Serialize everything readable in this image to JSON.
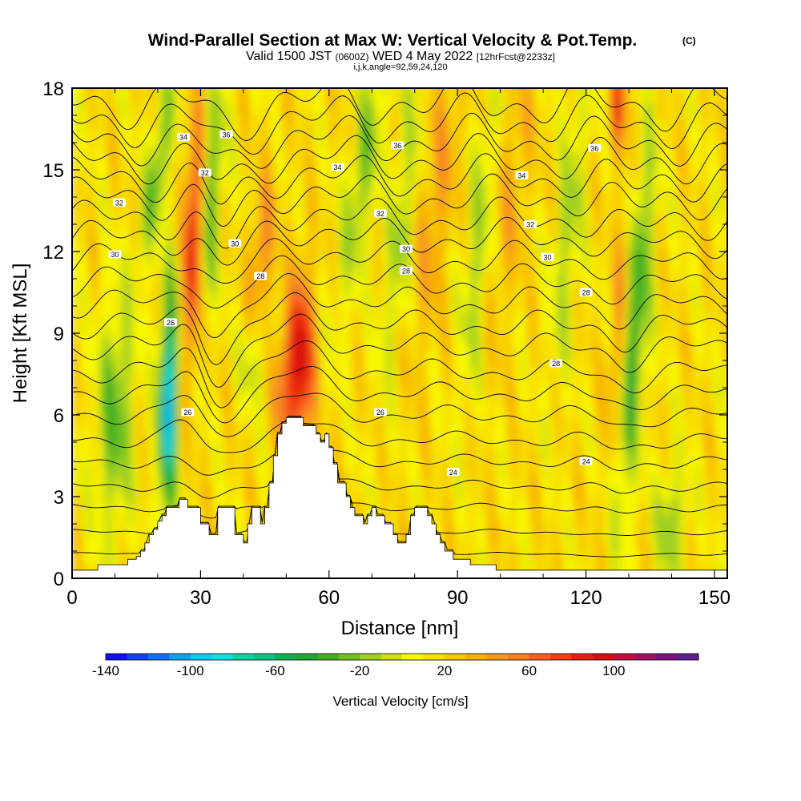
{
  "chart_data": {
    "type": "heatmap",
    "title": "Wind-Parallel Section at Max W: Vertical Velocity & Pot.Temp.",
    "title_mark": "(C)",
    "subtitle": {
      "pre": "Valid 1500 JST",
      "zulu": "(0600Z)",
      "mid": "WED 4 May 2022",
      "fcst": "[12hrFcst@2233z]"
    },
    "params_line": "i,j,k,angle=92,59,24,120",
    "xlabel": "Distance [nm]",
    "ylabel": "Height [Kft MSL]",
    "xlim": [
      0,
      153
    ],
    "ylim": [
      0,
      18
    ],
    "x_ticks": [
      "0",
      "30",
      "60",
      "90",
      "120",
      "150"
    ],
    "y_ticks": [
      "0",
      "3",
      "6",
      "9",
      "12",
      "15",
      "18"
    ],
    "colorbar": {
      "label": "Vertical Velocity [cm/s]",
      "range": [
        -140,
        140
      ],
      "tick_labels": [
        "-140",
        "-100",
        "-60",
        "-20",
        "20",
        "60",
        "100"
      ],
      "colors": [
        "#1010f0",
        "#1040f0",
        "#1070f0",
        "#10a0f0",
        "#10c8f0",
        "#10e0e0",
        "#10d0a0",
        "#10c080",
        "#10b050",
        "#20a830",
        "#40b020",
        "#70c020",
        "#a0d020",
        "#d0e010",
        "#f8f800",
        "#f8e000",
        "#f8c800",
        "#f8b000",
        "#f89820",
        "#f88020",
        "#f86020",
        "#f04010",
        "#e82010",
        "#d81010",
        "#c01040",
        "#a01060",
        "#801080",
        "#602090"
      ]
    },
    "features": [
      {
        "type": "terrain-peak",
        "x": 52,
        "top_kft": 5.9
      },
      {
        "type": "terrain-peak",
        "x": 30,
        "top_kft": 2.6
      },
      {
        "type": "updraft-max",
        "x": 28,
        "kft_range": [
          8,
          16
        ],
        "value": 110
      },
      {
        "type": "updraft-max",
        "x": 53,
        "kft_range": [
          6,
          10
        ],
        "value": 90
      },
      {
        "type": "downdraft-max",
        "x": 23,
        "kft_range": [
          3,
          10
        ],
        "value": -110
      },
      {
        "type": "downdraft-max",
        "x": 131,
        "kft_range": [
          5,
          13
        ],
        "value": -60
      }
    ],
    "isentrope_labels": [
      {
        "text": "34",
        "x": 26,
        "y": 16.2
      },
      {
        "text": "36",
        "x": 36,
        "y": 16.3
      },
      {
        "text": "32",
        "x": 31,
        "y": 14.9
      },
      {
        "text": "32",
        "x": 11,
        "y": 13.8
      },
      {
        "text": "30",
        "x": 38,
        "y": 12.3
      },
      {
        "text": "30",
        "x": 10,
        "y": 11.9
      },
      {
        "text": "28",
        "x": 44,
        "y": 11.1
      },
      {
        "text": "26",
        "x": 23,
        "y": 9.4
      },
      {
        "text": "26",
        "x": 27,
        "y": 6.1
      },
      {
        "text": "34",
        "x": 62,
        "y": 15.1
      },
      {
        "text": "36",
        "x": 76,
        "y": 15.9
      },
      {
        "text": "32",
        "x": 72,
        "y": 13.4
      },
      {
        "text": "30",
        "x": 78,
        "y": 12.1
      },
      {
        "text": "28",
        "x": 78,
        "y": 11.3
      },
      {
        "text": "34",
        "x": 105,
        "y": 14.8
      },
      {
        "text": "36",
        "x": 122,
        "y": 15.8
      },
      {
        "text": "32",
        "x": 107,
        "y": 13.0
      },
      {
        "text": "30",
        "x": 111,
        "y": 11.8
      },
      {
        "text": "28",
        "x": 120,
        "y": 10.5
      },
      {
        "text": "28",
        "x": 113,
        "y": 7.9
      },
      {
        "text": "26",
        "x": 72,
        "y": 6.1
      },
      {
        "text": "24",
        "x": 89,
        "y": 3.9
      },
      {
        "text": "24",
        "x": 120,
        "y": 4.3
      }
    ]
  }
}
